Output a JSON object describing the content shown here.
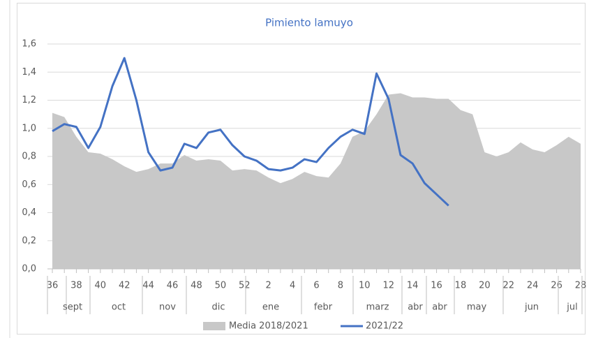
{
  "chart_data": {
    "type": "line",
    "title": "Pimiento lamuyo",
    "categories": [
      "36",
      null,
      "38",
      null,
      "40",
      null,
      "42",
      null,
      "44",
      null,
      "46",
      null,
      "48",
      null,
      "50",
      null,
      "52",
      null,
      "2",
      null,
      "4",
      null,
      "6",
      null,
      "8",
      null,
      "10",
      null,
      "12",
      null,
      "14",
      null,
      "16",
      null,
      "18",
      null,
      "20",
      null,
      "22",
      null,
      "24",
      null,
      "26",
      null,
      "28"
    ],
    "months": [
      "sept",
      "oct",
      "nov",
      "dic",
      "ene",
      "febr",
      "marz",
      "abr",
      "abr",
      "may",
      "jun",
      "jul"
    ],
    "series": [
      {
        "name": "Media 2018/2021",
        "kind": "area",
        "color": "#c8c8c8",
        "values": [
          1.11,
          1.08,
          0.94,
          0.83,
          0.82,
          0.78,
          0.73,
          0.69,
          0.71,
          0.75,
          0.75,
          0.81,
          0.77,
          0.78,
          0.77,
          0.7,
          0.71,
          0.7,
          0.65,
          0.61,
          0.64,
          0.69,
          0.66,
          0.65,
          0.75,
          0.94,
          0.98,
          1.1,
          1.24,
          1.25,
          1.22,
          1.22,
          1.21,
          1.21,
          1.13,
          1.1,
          0.83,
          0.8,
          0.83,
          0.9,
          0.85,
          0.83,
          0.88,
          0.94,
          0.89
        ]
      },
      {
        "name": "2021/22",
        "kind": "line",
        "color": "#4472c4",
        "values": [
          0.98,
          1.03,
          1.01,
          0.86,
          1.01,
          1.3,
          1.5,
          1.2,
          0.83,
          0.7,
          0.72,
          0.89,
          0.86,
          0.97,
          0.99,
          0.88,
          0.8,
          0.77,
          0.71,
          0.7,
          0.72,
          0.78,
          0.76,
          0.86,
          0.94,
          0.99,
          0.96,
          1.39,
          1.21,
          0.81,
          0.75,
          0.61,
          0.53,
          0.45,
          null,
          null,
          null,
          null,
          null,
          null,
          null,
          null,
          null,
          null,
          null
        ]
      }
    ],
    "ylim": [
      0,
      1.6
    ],
    "yticks": [
      {
        "value": 0,
        "label": "0,0"
      },
      {
        "value": 0.2,
        "label": "0,2"
      },
      {
        "value": 0.4,
        "label": "0,4"
      },
      {
        "value": 0.6,
        "label": "0,6"
      },
      {
        "value": 0.8,
        "label": "0,8"
      },
      {
        "value": 1.0,
        "label": "1,0"
      },
      {
        "value": 1.2,
        "label": "1,2"
      },
      {
        "value": 1.4,
        "label": "1,4"
      },
      {
        "value": 1.6,
        "label": "1,6"
      }
    ],
    "grid": true,
    "legend": "bottom"
  }
}
